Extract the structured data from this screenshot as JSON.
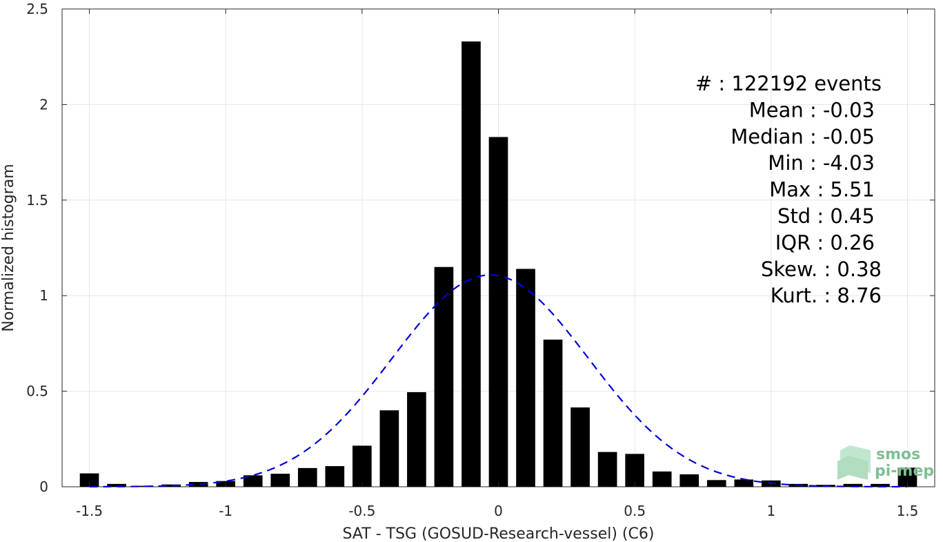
{
  "chart_data": {
    "type": "bar",
    "xlabel": "SAT - TSG (GOSUD-Research-vessel) (C6)",
    "ylabel": "Normalized histogram",
    "xlim": [
      -1.6,
      1.6
    ],
    "ylim": [
      0,
      2.5
    ],
    "grid": true,
    "xticks": [
      -1.5,
      -1,
      -0.5,
      0,
      0.5,
      1,
      1.5
    ],
    "xtick_labels": [
      "-1.5",
      "-1",
      "-0.5",
      "0",
      "0.5",
      "1",
      "1.5"
    ],
    "yticks": [
      0,
      0.5,
      1,
      1.5,
      2,
      2.5
    ],
    "ytick_labels": [
      "0",
      "0.5",
      "1",
      "1.5",
      "2",
      "2.5"
    ],
    "bar_color": "#000000",
    "bar_width": 0.07,
    "categories": [
      -1.5,
      -1.4,
      -1.3,
      -1.2,
      -1.1,
      -1.0,
      -0.9,
      -0.8,
      -0.7,
      -0.6,
      -0.5,
      -0.4,
      -0.3,
      -0.2,
      -0.1,
      0.0,
      0.1,
      0.2,
      0.3,
      0.4,
      0.5,
      0.6,
      0.7,
      0.8,
      0.9,
      1.0,
      1.1,
      1.2,
      1.3,
      1.4,
      1.5
    ],
    "values": [
      0.07,
      0.015,
      0.005,
      0.012,
      0.025,
      0.03,
      0.06,
      0.068,
      0.098,
      0.108,
      0.215,
      0.4,
      0.495,
      1.15,
      2.33,
      1.83,
      1.14,
      0.77,
      0.415,
      0.182,
      0.172,
      0.08,
      0.065,
      0.035,
      0.038,
      0.033,
      0.015,
      0.01,
      0.015,
      0.015,
      0.1
    ],
    "fit": {
      "type": "gaussian",
      "color": "#0000dd",
      "style": "dashed",
      "mean": -0.03,
      "std": 0.36,
      "x_range": [
        -1.5,
        1.5
      ]
    },
    "stats": [
      "#  : 122192 events",
      "Mean : -0.03",
      "Median : -0.05",
      "Min : -4.03",
      "Max : 5.51",
      "Std : 0.45",
      "IQR : 0.26",
      "Skew. : 0.38",
      "Kurt. : 8.76"
    ]
  },
  "logo": {
    "line1": "smos",
    "line2": "pi-mep",
    "color": "#7fbf94"
  }
}
